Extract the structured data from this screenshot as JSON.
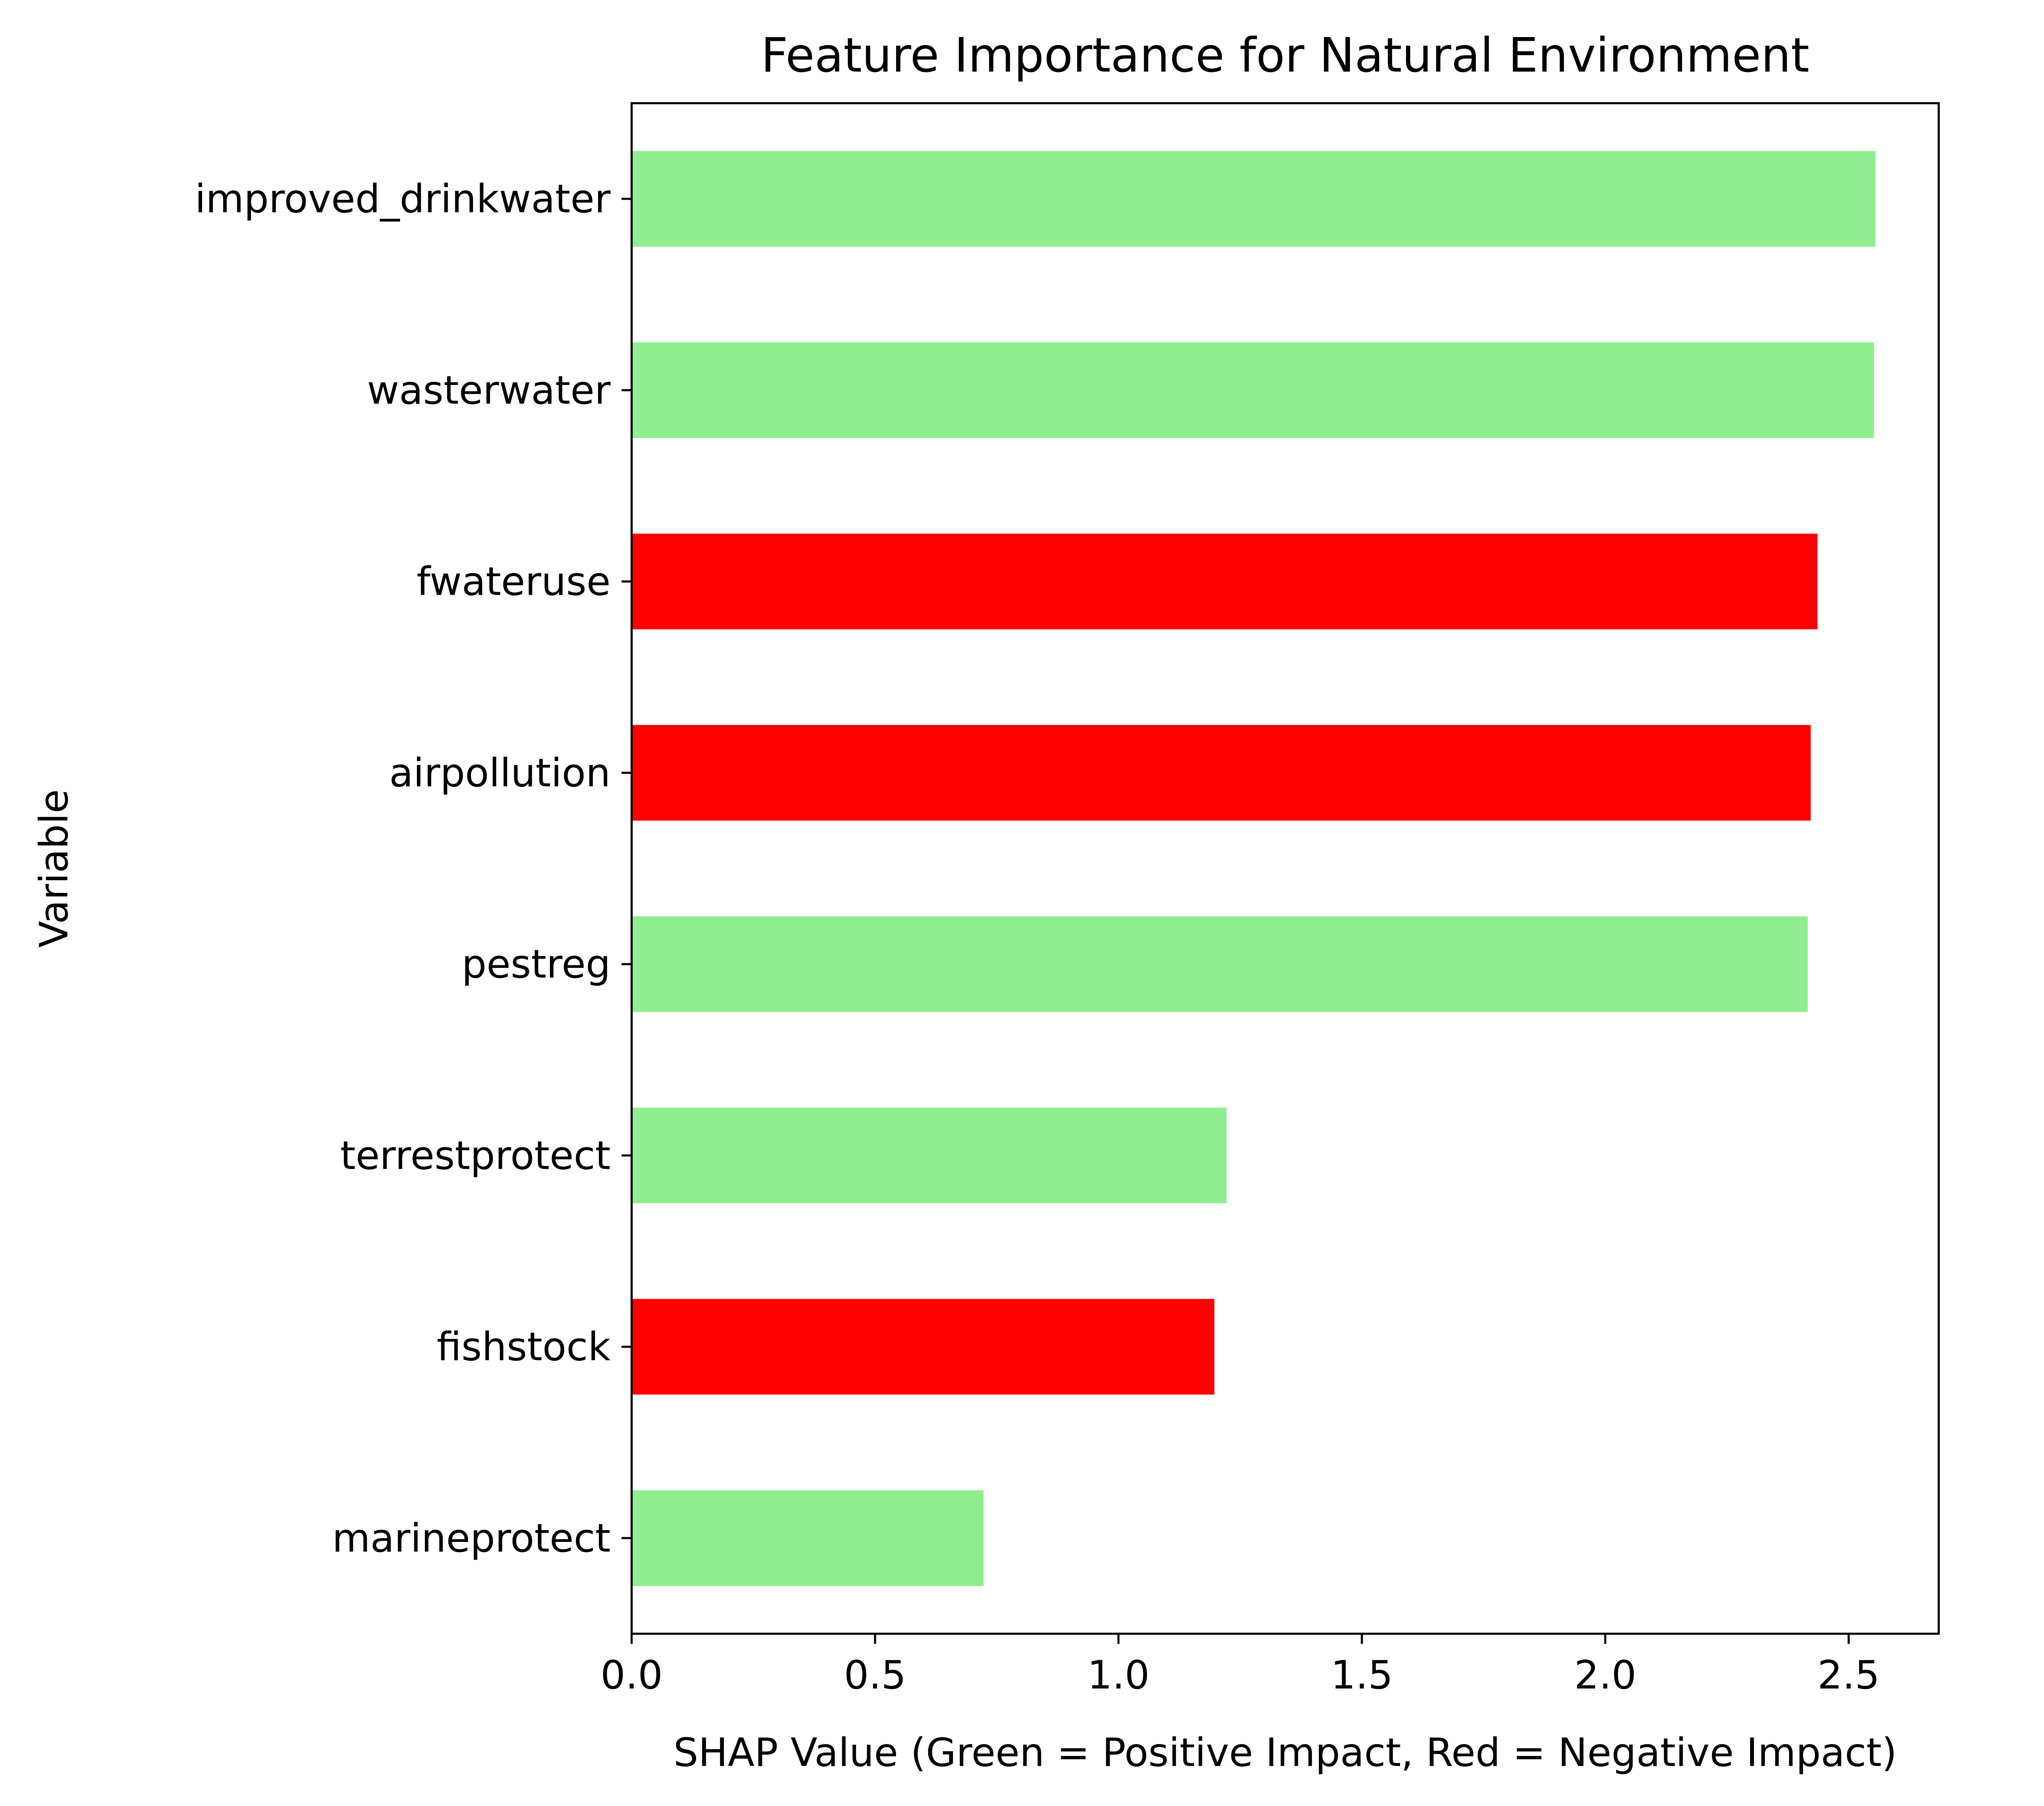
{
  "chart_data": {
    "type": "bar",
    "orientation": "horizontal",
    "title": "Feature Importance for Natural Environment",
    "xlabel": "SHAP Value (Green = Positive Impact, Red = Negative Impact)",
    "ylabel": "Variable",
    "xlim": [
      0,
      2.685
    ],
    "x_ticks": [
      "0.0",
      "0.5",
      "1.0",
      "1.5",
      "2.0",
      "2.5"
    ],
    "x_tick_values": [
      0,
      0.5,
      1.0,
      1.5,
      2.0,
      2.5
    ],
    "grid": false,
    "legend": "none",
    "colors": {
      "positive": "#90EE90",
      "negative": "#FF0000"
    },
    "categories": [
      "improved_drinkwater",
      "wasterwater",
      "fwateruse",
      "airpollution",
      "pestreg",
      "terrestprotect",
      "fishstock",
      "marineprotect"
    ],
    "values": [
      2.555,
      2.552,
      2.436,
      2.422,
      2.416,
      1.222,
      1.197,
      0.723
    ],
    "impact": [
      "positive",
      "positive",
      "negative",
      "negative",
      "positive",
      "positive",
      "negative",
      "positive"
    ]
  }
}
